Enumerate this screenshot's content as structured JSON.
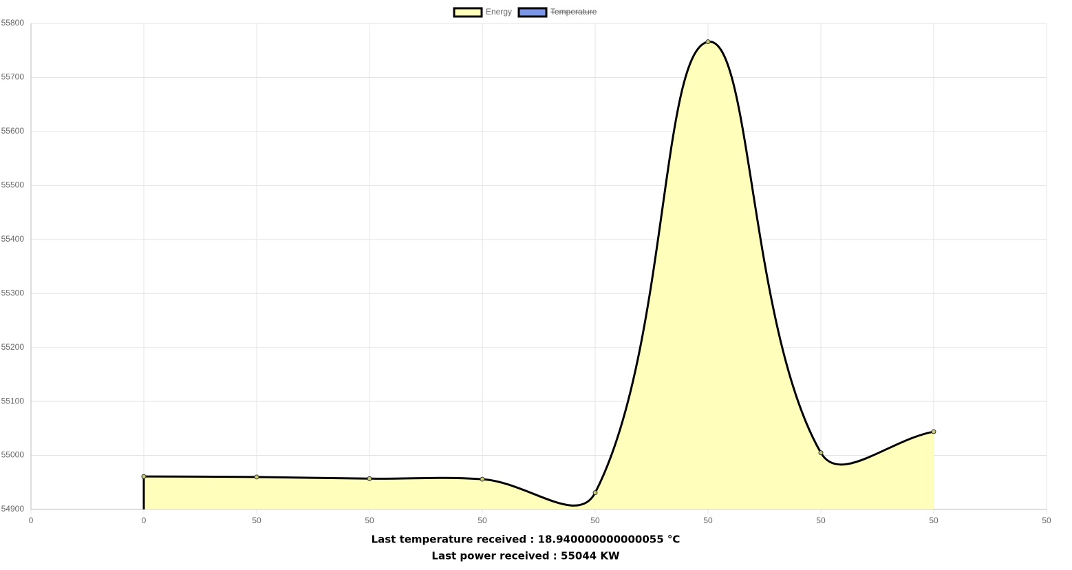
{
  "chart_data": {
    "type": "line",
    "categories": [
      "0",
      "0",
      "50",
      "50",
      "50",
      "50",
      "50",
      "50",
      "50",
      "50"
    ],
    "series": [
      {
        "name": "Energy",
        "color": "#ffffbb",
        "values": [
          null,
          54961,
          54960,
          54957,
          54956,
          54931,
          55766,
          55005,
          55044,
          null
        ]
      },
      {
        "name": "Temperature",
        "color": "#7b96e6",
        "hidden": true
      }
    ],
    "ylim": [
      54900,
      55800
    ],
    "yticks": [
      54900,
      55000,
      55100,
      55200,
      55300,
      55400,
      55500,
      55600,
      55700,
      55800
    ],
    "grid": true,
    "legend": "top",
    "notes": [
      "Last temperature received : 18.940000000000055 °C",
      "Last power received : 55044 KW"
    ]
  }
}
